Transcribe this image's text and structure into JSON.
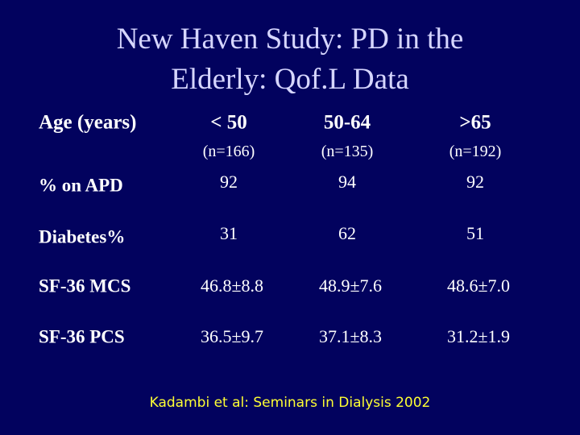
{
  "title": [
    "New Haven Study:  PD in the",
    "Elderly: Qof.L Data"
  ],
  "table": {
    "header": [
      "Age (years)",
      "< 50",
      "50-64",
      ">65"
    ],
    "n_row": [
      "(n=166)",
      "(n=135)",
      "(n=192)"
    ],
    "rows": [
      [
        "% on APD",
        "92",
        "94",
        "92"
      ],
      [
        "Diabetes%",
        "31",
        "62",
        "51"
      ],
      [
        "SF-36 MCS",
        "46.8±8.8",
        "48.9±7.6",
        "48.6±7.0"
      ],
      [
        "SF-36 PCS",
        "36.5±9.7",
        "37.1±8.3",
        "31.2±1.9"
      ]
    ]
  },
  "footer": "Kadambi et al: Seminars in Dialysis 2002"
}
